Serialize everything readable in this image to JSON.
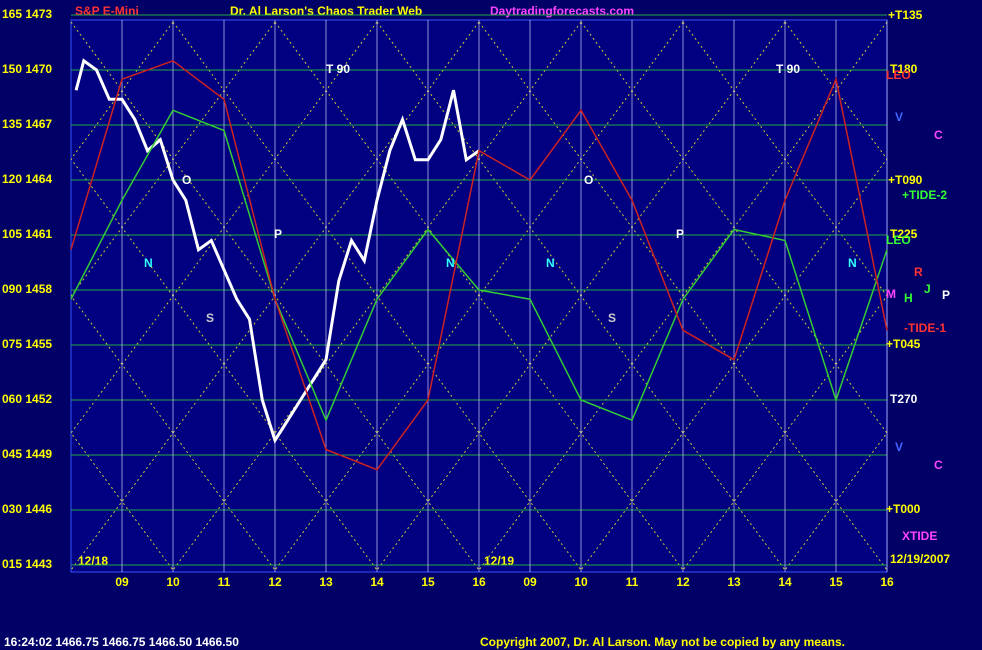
{
  "chart_data": {
    "type": "line",
    "title": "Dr. Al Larson's Chaos Trader Web",
    "symbol": "S&P E-Mini",
    "website": "Daytradingforecasts.com",
    "date_label": "12/19/2007",
    "day_labels": [
      "12/18",
      "12/19"
    ],
    "status": "16:24:02  1466.75  1466.75  1466.50  1466.50",
    "copyright": "Copyright 2007, Dr. Al Larson. May not be copied by any means.",
    "xlim": [
      8,
      24
    ],
    "xticks": [
      {
        "value": 9,
        "label": "09"
      },
      10,
      11,
      12,
      13,
      14,
      15,
      16,
      {
        "value": 17,
        "label": "09"
      },
      {
        "value": 18,
        "label": "10"
      },
      {
        "value": 19,
        "label": "11"
      },
      {
        "value": 20,
        "label": "12"
      },
      {
        "value": 21,
        "label": "13"
      },
      {
        "value": 22,
        "label": "14"
      },
      {
        "value": 23,
        "label": "15"
      },
      {
        "value": 24,
        "label": "16"
      }
    ],
    "ylim": [
      1443,
      1473
    ],
    "yticks": [
      {
        "value": 1473,
        "label": "165 1473"
      },
      {
        "value": 1470,
        "label": "150 1470"
      },
      {
        "value": 1467,
        "label": "135 1467"
      },
      {
        "value": 1464,
        "label": "120 1464"
      },
      {
        "value": 1461,
        "label": "105 1461"
      },
      {
        "value": 1458,
        "label": "090 1458"
      },
      {
        "value": 1455,
        "label": "075 1455"
      },
      {
        "value": 1452,
        "label": "060 1452"
      },
      {
        "value": 1449,
        "label": "045 1449"
      },
      {
        "value": 1446,
        "label": "030 1446"
      },
      {
        "value": 1443,
        "label": "015 1443"
      }
    ],
    "grid": true,
    "series": [
      {
        "name": "Price",
        "color": "#ffffff",
        "x": [
          8.1,
          8.25,
          8.5,
          8.75,
          9,
          9.25,
          9.5,
          9.75,
          10,
          10.25,
          10.5,
          10.75,
          11,
          11.25,
          11.5,
          11.75,
          12,
          12.25,
          12.5,
          12.75,
          13,
          13.25,
          13.5,
          13.75,
          14,
          14.25,
          14.5,
          14.75,
          15,
          15.25,
          15.5,
          15.75,
          16
        ],
        "values": [
          1468.9,
          1470.5,
          1470,
          1468.4,
          1468.4,
          1467.3,
          1465.6,
          1466.2,
          1464,
          1462.9,
          1460.2,
          1460.7,
          1459.1,
          1457.5,
          1456.4,
          1452,
          1449.8,
          1450.9,
          1452,
          1453.1,
          1454.2,
          1458.5,
          1460.7,
          1459.6,
          1462.9,
          1465.6,
          1467.3,
          1465.1,
          1465.1,
          1466.2,
          1468.9,
          1465.1,
          1465.6
        ]
      },
      {
        "name": "TIDE",
        "color": "#33cc33",
        "x": [
          8,
          9,
          10,
          11,
          12,
          13,
          14,
          15,
          16,
          17,
          18,
          19,
          20,
          21,
          22,
          23,
          24
        ],
        "values": [
          1457.5,
          1462.9,
          1467.8,
          1466.7,
          1457.5,
          1450.9,
          1457.5,
          1461.3,
          1458,
          1457.5,
          1452,
          1450.9,
          1457.5,
          1461.3,
          1460.7,
          1452,
          1460.2
        ]
      },
      {
        "name": "LEO",
        "color": "#cc2222",
        "x": [
          8,
          9,
          10,
          11,
          12,
          13,
          14,
          15,
          16,
          17,
          18,
          19,
          20,
          21,
          22,
          23,
          24
        ],
        "values": [
          1460.2,
          1469.5,
          1470.5,
          1468.4,
          1457.5,
          1449.3,
          1448.2,
          1452,
          1465.6,
          1464,
          1467.8,
          1462.9,
          1455.8,
          1454.2,
          1462.9,
          1469.5,
          1455.8
        ]
      }
    ],
    "annotations": [
      {
        "text": "+T135",
        "color": "#ffff00"
      },
      {
        "text": "T180",
        "color": "#ffff00"
      },
      {
        "text": "LEO",
        "color": "#ff3333"
      },
      {
        "text": "+T090",
        "color": "#ffff00"
      },
      {
        "text": "+TIDE-2",
        "color": "#33ff33"
      },
      {
        "text": "T225",
        "color": "#ffff00"
      },
      {
        "text": "LEO",
        "color": "#33ff33"
      },
      {
        "text": "-TIDE-1",
        "color": "#ff3333"
      },
      {
        "text": "+T045",
        "color": "#ffff00"
      },
      {
        "text": "T270",
        "color": "#ffffff"
      },
      {
        "text": "+T000",
        "color": "#ffff00"
      },
      {
        "text": "XTIDE",
        "color": "#ff44ff"
      },
      {
        "text": "T 90",
        "color": "#ffffff"
      },
      {
        "text": "T 90",
        "color": "#ffffff"
      },
      {
        "text": "N",
        "color": "#33ffff"
      },
      {
        "text": "N",
        "color": "#33ffff"
      },
      {
        "text": "N",
        "color": "#33ffff"
      },
      {
        "text": "N",
        "color": "#33ffff"
      },
      {
        "text": "O",
        "color": "#ffffff"
      },
      {
        "text": "O",
        "color": "#ffffff"
      },
      {
        "text": "P",
        "color": "#ffffff"
      },
      {
        "text": "P",
        "color": "#ffffff"
      },
      {
        "text": "S",
        "color": "#cccccc"
      },
      {
        "text": "S",
        "color": "#cccccc"
      },
      {
        "text": "C",
        "color": "#ff44ff"
      },
      {
        "text": "C",
        "color": "#ff44ff"
      },
      {
        "text": "V",
        "color": "#4466ff"
      },
      {
        "text": "V",
        "color": "#4466ff"
      },
      {
        "text": "R",
        "color": "#ff3333"
      },
      {
        "text": "J",
        "color": "#33ff33"
      },
      {
        "text": "H",
        "color": "#33ff33"
      },
      {
        "text": "M",
        "color": "#ff44ff"
      },
      {
        "text": "P",
        "color": "#ffffff"
      }
    ]
  }
}
